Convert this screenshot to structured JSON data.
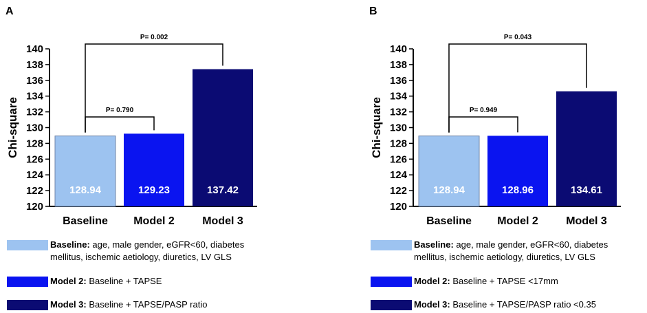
{
  "colors": {
    "baseline": "#9DC3F0",
    "model2": "#0A14F0",
    "model3": "#0B0B73"
  },
  "chart_data": [
    {
      "panel": "A",
      "type": "bar",
      "ylabel": "Chi-square",
      "ylim": [
        120,
        140
      ],
      "yticks": [
        120,
        122,
        124,
        126,
        128,
        130,
        132,
        134,
        136,
        138,
        140
      ],
      "categories": [
        "Baseline",
        "Model 2",
        "Model 3"
      ],
      "values": [
        128.94,
        129.23,
        137.42
      ],
      "value_labels": [
        "128.94",
        "129.23",
        "137.42"
      ],
      "comparisons": [
        {
          "from": "Baseline",
          "to": "Model 2",
          "label": "P= 0.790"
        },
        {
          "from": "Baseline",
          "to": "Model 3",
          "label": "P= 0.002"
        }
      ],
      "legend": [
        {
          "name": "Baseline:",
          "desc": " age, male gender, eGFR<60, diabetes mellitus, ischemic aetiology, diuretics,  LV GLS"
        },
        {
          "name": "Model 2:",
          "desc": " Baseline + TAPSE"
        },
        {
          "name": "Model 3:",
          "desc": " Baseline  +  TAPSE/PASP ratio"
        }
      ]
    },
    {
      "panel": "B",
      "type": "bar",
      "ylabel": "Chi-square",
      "ylim": [
        120,
        140
      ],
      "yticks": [
        120,
        122,
        124,
        126,
        128,
        130,
        132,
        134,
        136,
        138,
        140
      ],
      "categories": [
        "Baseline",
        "Model 2",
        "Model 3"
      ],
      "values": [
        128.94,
        128.96,
        134.61
      ],
      "value_labels": [
        "128.94",
        "128.96",
        "134.61"
      ],
      "comparisons": [
        {
          "from": "Baseline",
          "to": "Model 2",
          "label": "P= 0.949"
        },
        {
          "from": "Baseline",
          "to": "Model 3",
          "label": "P= 0.043"
        }
      ],
      "legend": [
        {
          "name": "Baseline:",
          "desc": " age, male gender, eGFR<60, diabetes mellitus, ischemic aetiology, diuretics,  LV GLS"
        },
        {
          "name": "Model 2:",
          "desc": " Baseline + TAPSE <17mm"
        },
        {
          "name": "Model 3:",
          "desc": " Baseline  +  TAPSE/PASP ratio <0.35"
        }
      ]
    }
  ]
}
